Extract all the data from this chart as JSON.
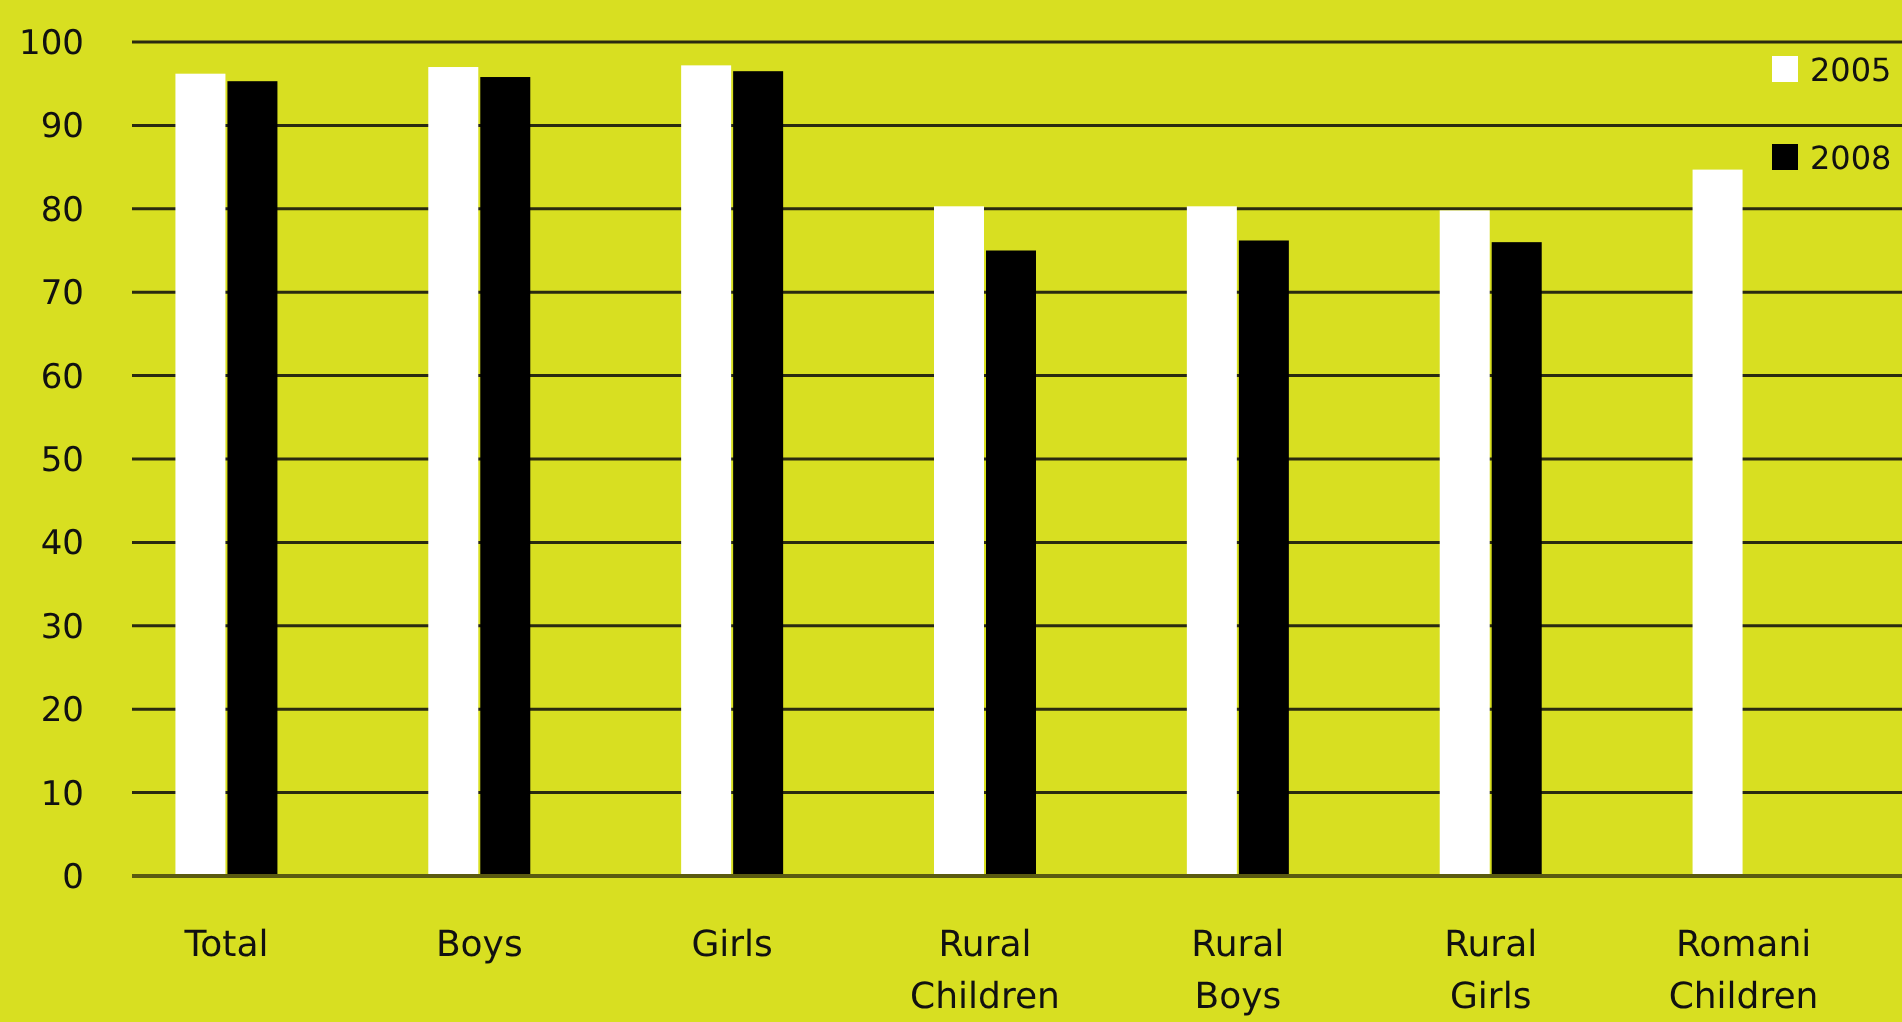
{
  "chart_data": {
    "type": "bar",
    "categories": [
      "Total",
      "Boys",
      "Girls",
      "Rural Children",
      "Rural Boys",
      "Rural Girls",
      "Romani Children"
    ],
    "series": [
      {
        "name": "2005",
        "color": "#ffffff",
        "values": [
          96.2,
          97.0,
          97.2,
          80.3,
          80.3,
          79.8,
          84.7
        ]
      },
      {
        "name": "2008",
        "color": "#000000",
        "values": [
          95.3,
          95.8,
          96.5,
          75.0,
          76.2,
          76.0,
          null
        ]
      }
    ],
    "ylim": [
      0,
      100
    ],
    "yticks": [
      0,
      10,
      20,
      30,
      40,
      50,
      60,
      70,
      80,
      90,
      100
    ],
    "grid": "y",
    "legend": "top right"
  }
}
